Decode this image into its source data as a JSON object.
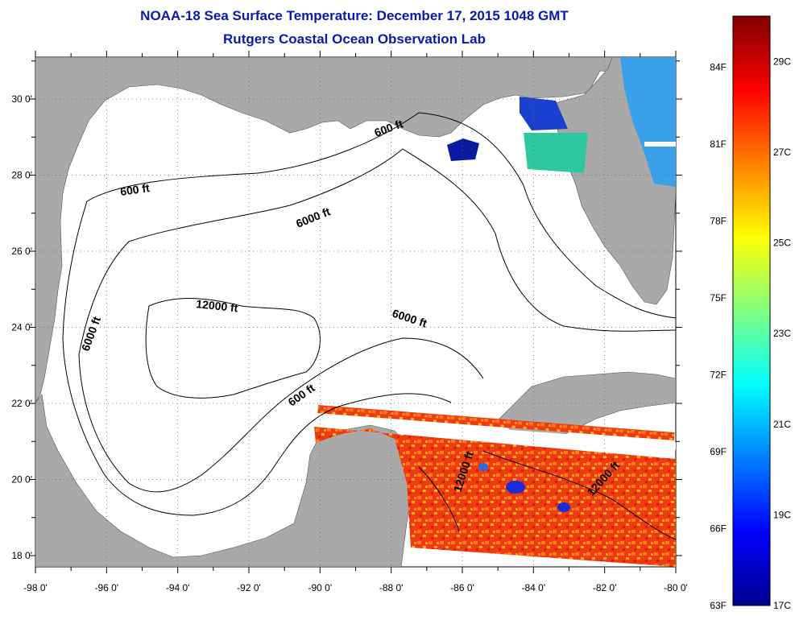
{
  "header": {
    "title": "NOAA-18 Sea Surface Temperature:  December 17, 2015 1048 GMT",
    "subtitle": "Rutgers Coastal Ocean Observation Lab"
  },
  "map": {
    "x_ticks": [
      "-98 0'",
      "-96 0'",
      "-94 0'",
      "-92 0'",
      "-90 0'",
      "-88 0'",
      "-86 0'",
      "-84 0'",
      "-82 0'",
      "-80 0'"
    ],
    "y_ticks": [
      "30 0'",
      "28 0'",
      "26 0'",
      "24 0'",
      "22 0'",
      "20 0'",
      "18 0'"
    ],
    "contour_labels": [
      "600 ft",
      "600 ft",
      "6000 ft",
      "6000 ft",
      "12000 ft",
      "6000 ft",
      "600 ft",
      "12000 ft",
      "12000 ft"
    ],
    "colors": {
      "land": "#a9a9a9",
      "ocean": "#ffffff",
      "title": "#0a1aa8"
    }
  },
  "colorbar": {
    "fahrenheit_labels": [
      "84F",
      "81F",
      "78F",
      "75F",
      "72F",
      "69F",
      "66F",
      "63F"
    ],
    "celsius_labels": [
      "29C",
      "27C",
      "25C",
      "23C",
      "21C",
      "19C",
      "17C"
    ],
    "range_f": [
      63,
      86
    ],
    "range_c": [
      17,
      30
    ],
    "colormap": "jet"
  }
}
